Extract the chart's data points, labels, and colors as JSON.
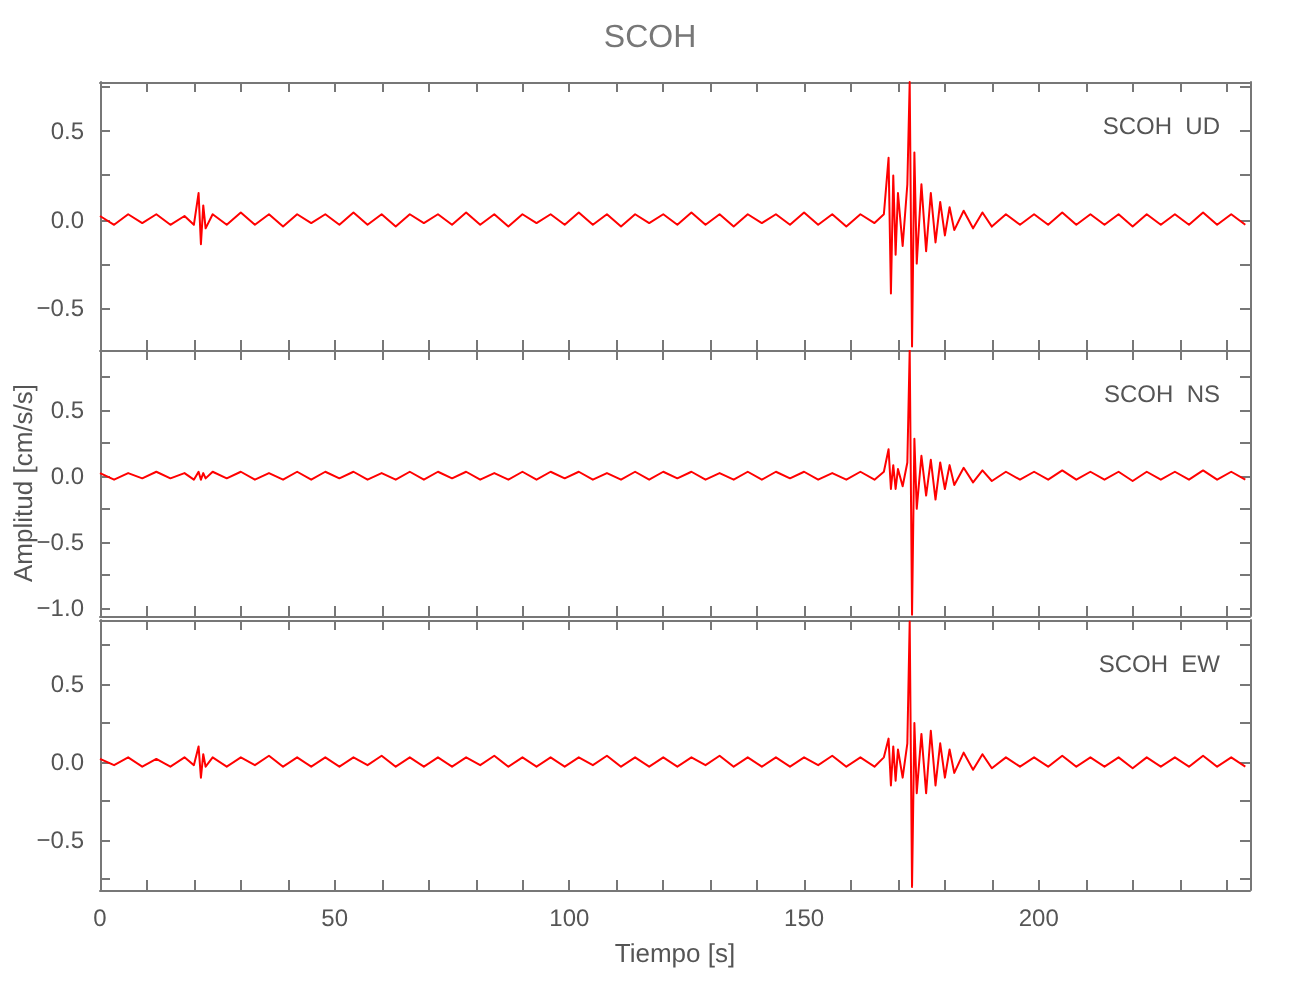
{
  "chart_data": [
    {
      "type": "line",
      "title": "SCOH",
      "annotations": [
        "SCOH  UD"
      ],
      "tick_labels": "y",
      "grid": false,
      "x": [
        0,
        3,
        6,
        9,
        12,
        15,
        18,
        20,
        21,
        21.5,
        22,
        22.5,
        24,
        27,
        30,
        33,
        36,
        39,
        42,
        45,
        48,
        51,
        54,
        57,
        60,
        63,
        66,
        69,
        72,
        75,
        78,
        81,
        84,
        87,
        90,
        93,
        96,
        99,
        102,
        105,
        108,
        111,
        114,
        117,
        120,
        123,
        126,
        129,
        132,
        135,
        138,
        141,
        144,
        147,
        150,
        153,
        156,
        159,
        162,
        165,
        167,
        168,
        168.5,
        169,
        169.5,
        170,
        171,
        172,
        172.5,
        173,
        173.5,
        174,
        175,
        176,
        177,
        178,
        179,
        180,
        181,
        182,
        184,
        186,
        188,
        190,
        193,
        196,
        199,
        202,
        205,
        208,
        211,
        214,
        217,
        220,
        223,
        226,
        229,
        232,
        235,
        238,
        241,
        244
      ],
      "series": [
        {
          "color": "#ff0000",
          "values": [
            0.02,
            -0.03,
            0.03,
            -0.02,
            0.03,
            -0.03,
            0.02,
            -0.03,
            0.15,
            -0.14,
            0.08,
            -0.05,
            0.03,
            -0.03,
            0.04,
            -0.03,
            0.03,
            -0.04,
            0.03,
            -0.02,
            0.03,
            -0.03,
            0.04,
            -0.03,
            0.03,
            -0.04,
            0.03,
            -0.02,
            0.03,
            -0.03,
            0.04,
            -0.03,
            0.03,
            -0.04,
            0.03,
            -0.02,
            0.03,
            -0.03,
            0.04,
            -0.03,
            0.03,
            -0.04,
            0.03,
            -0.02,
            0.03,
            -0.03,
            0.04,
            -0.03,
            0.03,
            -0.04,
            0.03,
            -0.02,
            0.03,
            -0.03,
            0.04,
            -0.03,
            0.03,
            -0.04,
            0.03,
            -0.02,
            0.03,
            0.35,
            -0.42,
            0.25,
            -0.2,
            0.15,
            -0.15,
            0.2,
            0.78,
            -0.72,
            0.38,
            -0.25,
            0.2,
            -0.18,
            0.15,
            -0.13,
            0.1,
            -0.09,
            0.07,
            -0.06,
            0.05,
            -0.05,
            0.04,
            -0.04,
            0.03,
            -0.03,
            0.03,
            -0.03,
            0.04,
            -0.03,
            0.03,
            -0.03,
            0.03,
            -0.04,
            0.03,
            -0.03,
            0.03,
            -0.03,
            0.04,
            -0.03,
            0.03,
            -0.03
          ]
        }
      ],
      "xlim": [
        0,
        245
      ],
      "xticks": [
        {
          "value": 0,
          "label": null
        },
        {
          "value": 10,
          "label": null
        },
        {
          "value": 20,
          "label": null
        },
        {
          "value": 30,
          "label": null
        },
        {
          "value": 40,
          "label": null
        },
        {
          "value": 50,
          "label": null
        },
        {
          "value": 60,
          "label": null
        },
        {
          "value": 70,
          "label": null
        },
        {
          "value": 80,
          "label": null
        },
        {
          "value": 90,
          "label": null
        },
        {
          "value": 100,
          "label": null
        },
        {
          "value": 110,
          "label": null
        },
        {
          "value": 120,
          "label": null
        },
        {
          "value": 130,
          "label": null
        },
        {
          "value": 140,
          "label": null
        },
        {
          "value": 150,
          "label": null
        },
        {
          "value": 160,
          "label": null
        },
        {
          "value": 170,
          "label": null
        },
        {
          "value": 180,
          "label": null
        },
        {
          "value": 190,
          "label": null
        },
        {
          "value": 200,
          "label": null
        },
        {
          "value": 210,
          "label": null
        },
        {
          "value": 220,
          "label": null
        },
        {
          "value": 230,
          "label": null
        },
        {
          "value": 240,
          "label": null
        }
      ],
      "ylim": [
        -0.74,
        0.78
      ],
      "yticks": [
        {
          "value": -0.5,
          "label": "−0.5"
        },
        {
          "value": -0.25,
          "label": null
        },
        {
          "value": 0,
          "label": "0.0"
        },
        {
          "value": 0.25,
          "label": null
        },
        {
          "value": 0.5,
          "label": "0.5"
        },
        {
          "value": 0.75,
          "label": null
        }
      ]
    },
    {
      "type": "line",
      "ylabel": "Amplitud [cm/s/s]",
      "annotations": [
        "SCOH  NS"
      ],
      "tick_labels": "y",
      "grid": false,
      "x": [
        0,
        3,
        6,
        9,
        12,
        15,
        18,
        20,
        21,
        21.5,
        22,
        22.5,
        24,
        27,
        30,
        33,
        36,
        39,
        42,
        45,
        48,
        51,
        54,
        57,
        60,
        63,
        66,
        69,
        72,
        75,
        78,
        81,
        84,
        87,
        90,
        93,
        96,
        99,
        102,
        105,
        108,
        111,
        114,
        117,
        120,
        123,
        126,
        129,
        132,
        135,
        138,
        141,
        144,
        147,
        150,
        153,
        156,
        159,
        162,
        165,
        167,
        168,
        168.5,
        169,
        169.5,
        170,
        171,
        172,
        172.5,
        173,
        173.5,
        174,
        175,
        176,
        177,
        178,
        179,
        180,
        181,
        182,
        184,
        186,
        188,
        190,
        193,
        196,
        199,
        202,
        205,
        208,
        211,
        214,
        217,
        220,
        223,
        226,
        229,
        232,
        235,
        238,
        241,
        244
      ],
      "series": [
        {
          "color": "#ff0000",
          "values": [
            0.02,
            -0.03,
            0.02,
            -0.02,
            0.03,
            -0.02,
            0.02,
            -0.03,
            0.03,
            -0.03,
            0.02,
            -0.02,
            0.03,
            -0.02,
            0.03,
            -0.03,
            0.02,
            -0.03,
            0.03,
            -0.03,
            0.03,
            -0.02,
            0.03,
            -0.03,
            0.02,
            -0.03,
            0.03,
            -0.03,
            0.03,
            -0.02,
            0.03,
            -0.03,
            0.02,
            -0.03,
            0.03,
            -0.03,
            0.03,
            -0.02,
            0.03,
            -0.03,
            0.02,
            -0.03,
            0.03,
            -0.03,
            0.03,
            -0.02,
            0.03,
            -0.03,
            0.02,
            -0.03,
            0.03,
            -0.03,
            0.03,
            -0.02,
            0.03,
            -0.03,
            0.02,
            -0.03,
            0.03,
            -0.03,
            0.03,
            0.2,
            -0.1,
            0.08,
            -0.1,
            0.05,
            -0.08,
            0.1,
            0.95,
            -1.05,
            0.28,
            -0.25,
            0.15,
            -0.15,
            0.12,
            -0.18,
            0.1,
            -0.1,
            0.08,
            -0.07,
            0.06,
            -0.05,
            0.04,
            -0.04,
            0.03,
            -0.03,
            0.03,
            -0.03,
            0.04,
            -0.03,
            0.03,
            -0.03,
            0.03,
            -0.04,
            0.03,
            -0.03,
            0.03,
            -0.03,
            0.04,
            -0.03,
            0.03,
            -0.03
          ]
        }
      ],
      "xlim": [
        0,
        245
      ],
      "xticks": [
        {
          "value": 0,
          "label": null
        },
        {
          "value": 10,
          "label": null
        },
        {
          "value": 20,
          "label": null
        },
        {
          "value": 30,
          "label": null
        },
        {
          "value": 40,
          "label": null
        },
        {
          "value": 50,
          "label": null
        },
        {
          "value": 60,
          "label": null
        },
        {
          "value": 70,
          "label": null
        },
        {
          "value": 80,
          "label": null
        },
        {
          "value": 90,
          "label": null
        },
        {
          "value": 100,
          "label": null
        },
        {
          "value": 110,
          "label": null
        },
        {
          "value": 120,
          "label": null
        },
        {
          "value": 130,
          "label": null
        },
        {
          "value": 140,
          "label": null
        },
        {
          "value": 150,
          "label": null
        },
        {
          "value": 160,
          "label": null
        },
        {
          "value": 170,
          "label": null
        },
        {
          "value": 180,
          "label": null
        },
        {
          "value": 190,
          "label": null
        },
        {
          "value": 200,
          "label": null
        },
        {
          "value": 210,
          "label": null
        },
        {
          "value": 220,
          "label": null
        },
        {
          "value": 230,
          "label": null
        },
        {
          "value": 240,
          "label": null
        }
      ],
      "ylim": [
        -1.06,
        0.95
      ],
      "yticks": [
        {
          "value": -1,
          "label": "−1.0"
        },
        {
          "value": -0.75,
          "label": null
        },
        {
          "value": -0.5,
          "label": "−0.5"
        },
        {
          "value": -0.25,
          "label": null
        },
        {
          "value": 0,
          "label": "0.0"
        },
        {
          "value": 0.25,
          "label": null
        },
        {
          "value": 0.5,
          "label": "0.5"
        },
        {
          "value": 0.75,
          "label": null
        }
      ]
    },
    {
      "type": "line",
      "xlabel": "Tiempo [s]",
      "annotations": [
        "SCOH  EW"
      ],
      "grid": false,
      "x": [
        0,
        3,
        6,
        9,
        12,
        15,
        18,
        20,
        21,
        21.5,
        22,
        22.5,
        24,
        27,
        30,
        33,
        36,
        39,
        42,
        45,
        48,
        51,
        54,
        57,
        60,
        63,
        66,
        69,
        72,
        75,
        78,
        81,
        84,
        87,
        90,
        93,
        96,
        99,
        102,
        105,
        108,
        111,
        114,
        117,
        120,
        123,
        126,
        129,
        132,
        135,
        138,
        141,
        144,
        147,
        150,
        153,
        156,
        159,
        162,
        165,
        167,
        168,
        168.5,
        169,
        169.5,
        170,
        171,
        172,
        172.5,
        173,
        173.5,
        174,
        175,
        176,
        177,
        178,
        179,
        180,
        181,
        182,
        184,
        186,
        188,
        190,
        193,
        196,
        199,
        202,
        205,
        208,
        211,
        214,
        217,
        220,
        223,
        226,
        229,
        232,
        235,
        238,
        241,
        244
      ],
      "series": [
        {
          "color": "#ff0000",
          "values": [
            0.02,
            -0.02,
            0.03,
            -0.03,
            0.02,
            -0.03,
            0.03,
            -0.02,
            0.1,
            -0.1,
            0.05,
            -0.03,
            0.03,
            -0.03,
            0.03,
            -0.02,
            0.04,
            -0.03,
            0.03,
            -0.03,
            0.03,
            -0.03,
            0.03,
            -0.02,
            0.04,
            -0.03,
            0.03,
            -0.03,
            0.03,
            -0.03,
            0.03,
            -0.02,
            0.04,
            -0.03,
            0.03,
            -0.03,
            0.03,
            -0.03,
            0.03,
            -0.02,
            0.04,
            -0.03,
            0.03,
            -0.03,
            0.03,
            -0.03,
            0.03,
            -0.02,
            0.04,
            -0.03,
            0.03,
            -0.03,
            0.03,
            -0.03,
            0.03,
            -0.02,
            0.04,
            -0.03,
            0.03,
            -0.03,
            0.03,
            0.15,
            -0.15,
            0.1,
            -0.12,
            0.08,
            -0.1,
            0.12,
            0.9,
            -0.8,
            0.25,
            -0.2,
            0.18,
            -0.2,
            0.2,
            -0.15,
            0.12,
            -0.1,
            0.08,
            -0.07,
            0.06,
            -0.05,
            0.05,
            -0.04,
            0.03,
            -0.03,
            0.03,
            -0.03,
            0.04,
            -0.03,
            0.03,
            -0.03,
            0.03,
            -0.04,
            0.03,
            -0.03,
            0.03,
            -0.03,
            0.04,
            -0.03,
            0.03,
            -0.03
          ]
        }
      ],
      "xlim": [
        0,
        245
      ],
      "xticks": [
        0,
        {
          "value": 10,
          "label": null
        },
        {
          "value": 20,
          "label": null
        },
        {
          "value": 30,
          "label": null
        },
        {
          "value": 40,
          "label": null
        },
        50,
        {
          "value": 60,
          "label": null
        },
        {
          "value": 70,
          "label": null
        },
        {
          "value": 80,
          "label": null
        },
        {
          "value": 90,
          "label": null
        },
        100,
        {
          "value": 110,
          "label": null
        },
        {
          "value": 120,
          "label": null
        },
        {
          "value": 130,
          "label": null
        },
        {
          "value": 140,
          "label": null
        },
        150,
        {
          "value": 160,
          "label": null
        },
        {
          "value": 170,
          "label": null
        },
        {
          "value": 180,
          "label": null
        },
        {
          "value": 190,
          "label": null
        },
        200,
        {
          "value": 210,
          "label": null
        },
        {
          "value": 220,
          "label": null
        },
        {
          "value": 230,
          "label": null
        },
        {
          "value": 240,
          "label": null
        }
      ],
      "ylim": [
        -0.82,
        0.91
      ],
      "yticks": [
        {
          "value": -0.75,
          "label": null
        },
        {
          "value": -0.5,
          "label": "−0.5"
        },
        {
          "value": -0.25,
          "label": null
        },
        {
          "value": 0,
          "label": "0.0"
        },
        {
          "value": 0.25,
          "label": null
        },
        {
          "value": 0.5,
          "label": "0.5"
        },
        {
          "value": 0.75,
          "label": null
        }
      ]
    }
  ]
}
